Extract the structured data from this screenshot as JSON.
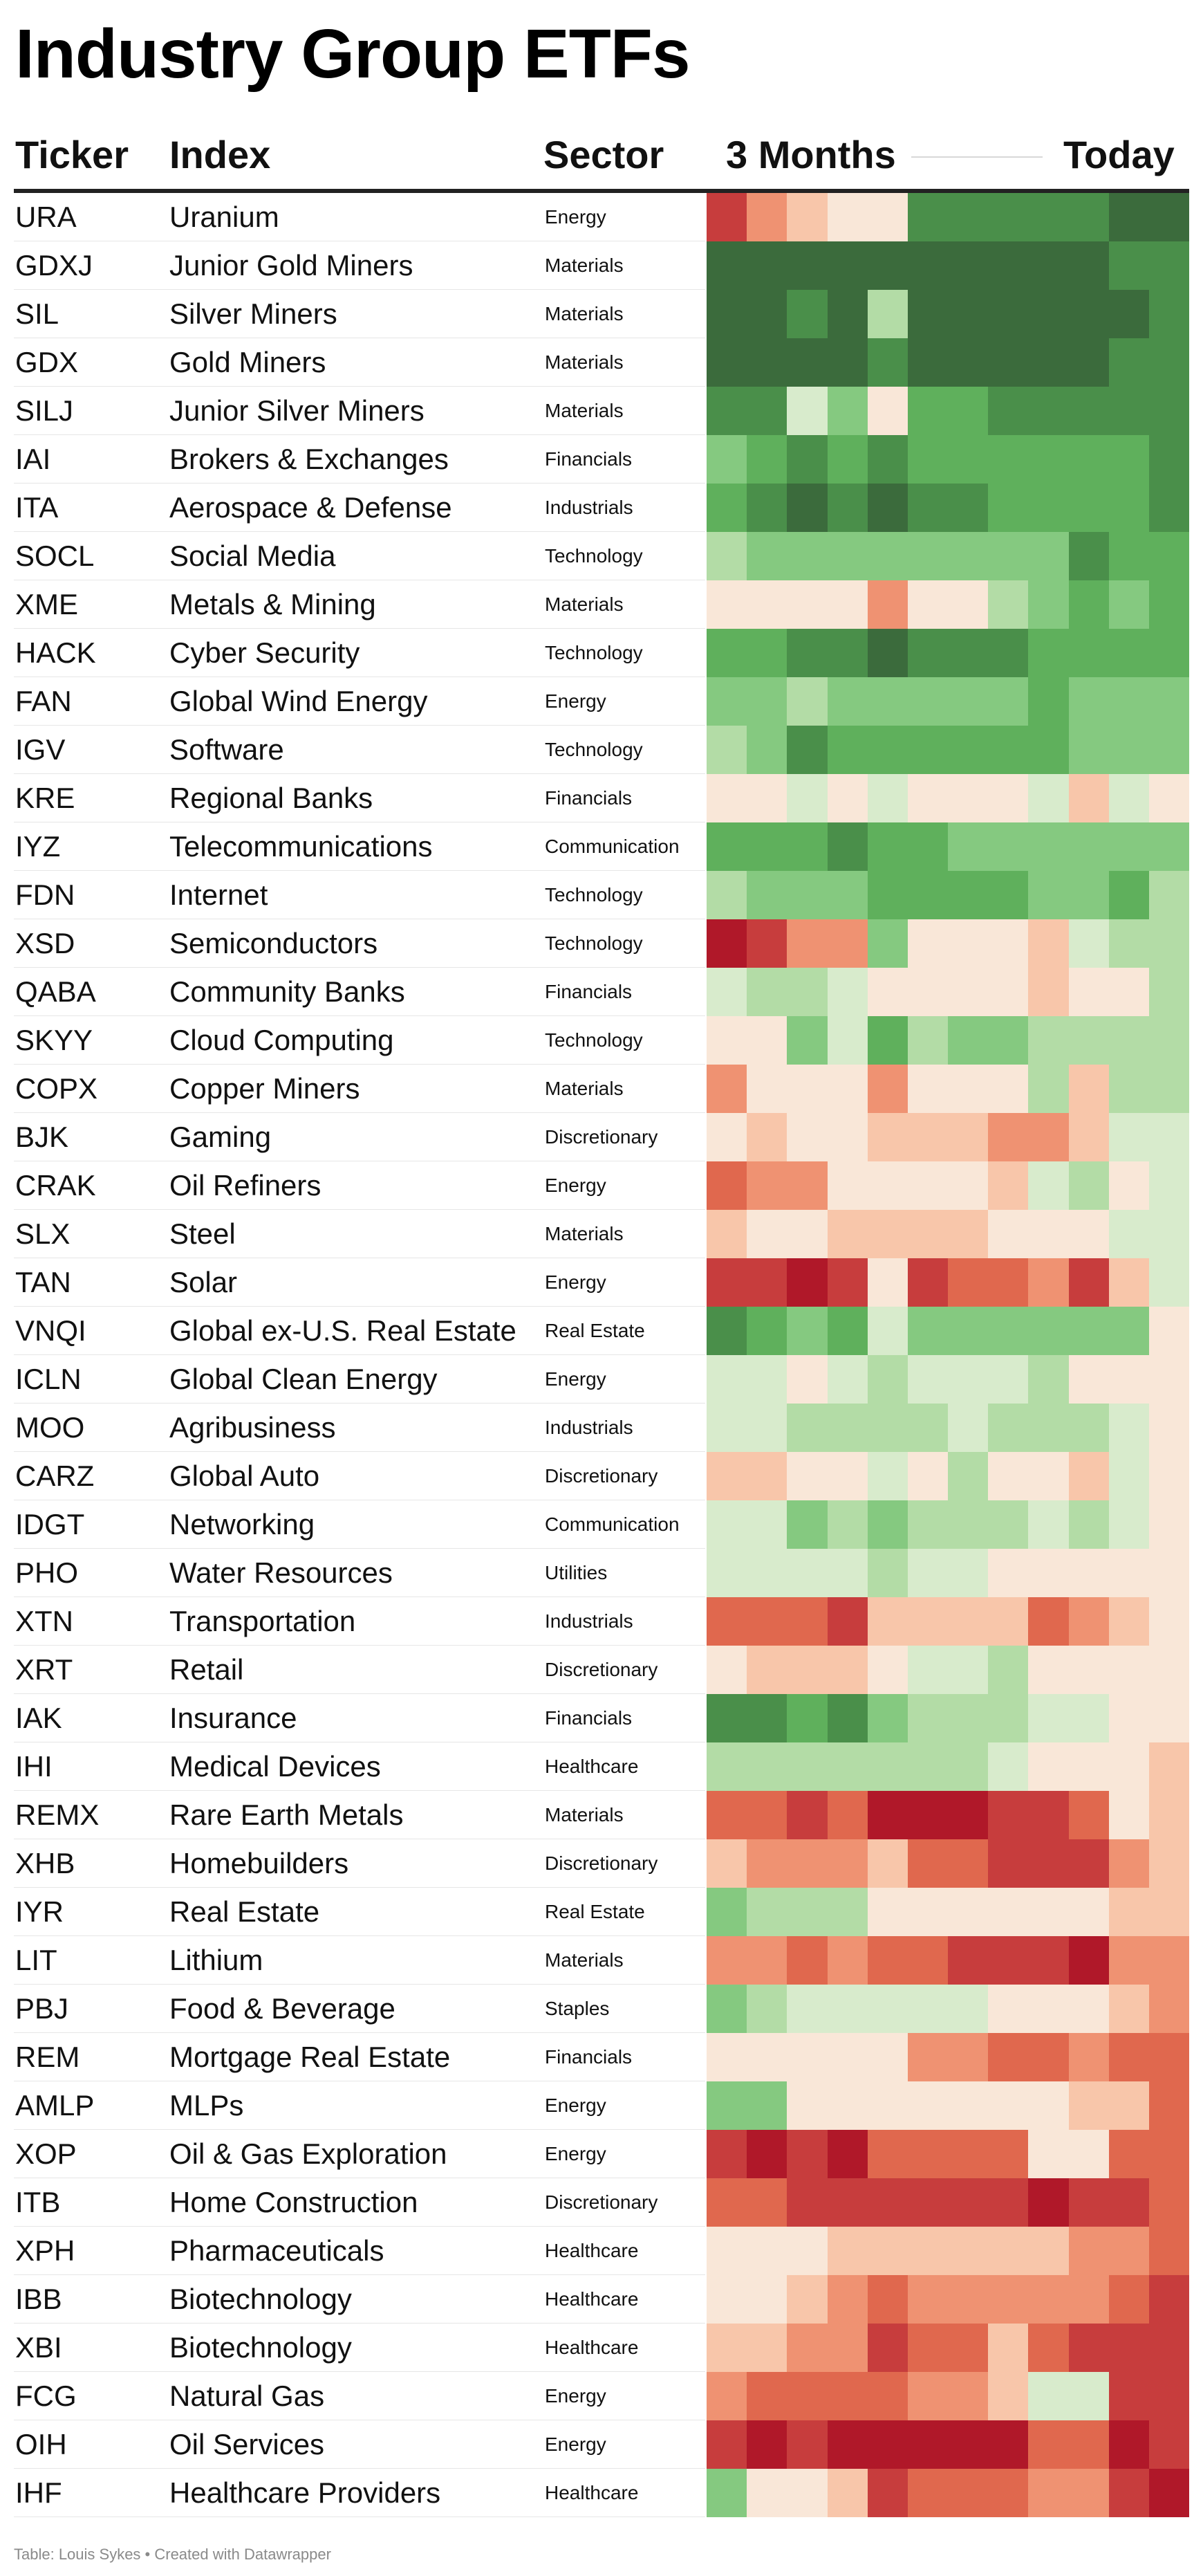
{
  "title": "Industry Group ETFs",
  "headers": {
    "ticker": "Ticker",
    "index": "Index",
    "sector": "Sector",
    "period_start": "3 Months",
    "period_end": "Today"
  },
  "footer": "Table: Louis Sykes • Created with Datawrapper",
  "colors": {
    "-5": "#b01829",
    "-4": "#c73d3d",
    "-3": "#e0684e",
    "-2": "#ef9272",
    "-1": "#f8c6aa",
    "0": "#f9e7d8",
    "1": "#d8ebcc",
    "2": "#b3dca6",
    "3": "#85c980",
    "4": "#5fb05c",
    "5": "#4a8f4a",
    "6": "#3b6b3c"
  },
  "chart_data": {
    "type": "heatmap",
    "title": "Industry Group ETFs",
    "columns": [
      "Ticker",
      "Index",
      "Sector"
    ],
    "time_axis": {
      "start_label": "3 Months",
      "end_label": "Today"
    },
    "scale": "relative strength, -5 (strong red) to 6 (dark green)",
    "rows": [
      {
        "ticker": "URA",
        "index": "Uranium",
        "sector": "Energy",
        "values": [
          -4,
          -2,
          -1,
          0,
          0,
          5,
          5,
          5,
          5,
          5,
          6,
          6
        ]
      },
      {
        "ticker": "GDXJ",
        "index": "Junior Gold Miners",
        "sector": "Materials",
        "values": [
          6,
          6,
          6,
          6,
          6,
          6,
          6,
          6,
          6,
          6,
          5,
          5
        ]
      },
      {
        "ticker": "SIL",
        "index": "Silver Miners",
        "sector": "Materials",
        "values": [
          6,
          6,
          5,
          6,
          2,
          6,
          6,
          6,
          6,
          6,
          6,
          5
        ]
      },
      {
        "ticker": "GDX",
        "index": "Gold Miners",
        "sector": "Materials",
        "values": [
          6,
          6,
          6,
          6,
          5,
          6,
          6,
          6,
          6,
          6,
          5,
          5
        ]
      },
      {
        "ticker": "SILJ",
        "index": "Junior Silver Miners",
        "sector": "Materials",
        "values": [
          5,
          5,
          1,
          3,
          0,
          4,
          4,
          5,
          5,
          5,
          5,
          5
        ]
      },
      {
        "ticker": "IAI",
        "index": "Brokers & Exchanges",
        "sector": "Financials",
        "values": [
          3,
          4,
          5,
          4,
          5,
          4,
          4,
          4,
          4,
          4,
          4,
          5
        ]
      },
      {
        "ticker": "ITA",
        "index": "Aerospace & Defense",
        "sector": "Industrials",
        "values": [
          4,
          5,
          6,
          5,
          6,
          5,
          5,
          4,
          4,
          4,
          4,
          5
        ]
      },
      {
        "ticker": "SOCL",
        "index": "Social Media",
        "sector": "Technology",
        "values": [
          2,
          3,
          3,
          3,
          3,
          3,
          3,
          3,
          3,
          5,
          4,
          4
        ]
      },
      {
        "ticker": "XME",
        "index": "Metals & Mining",
        "sector": "Materials",
        "values": [
          0,
          0,
          0,
          0,
          -2,
          0,
          0,
          2,
          3,
          4,
          3,
          4
        ]
      },
      {
        "ticker": "HACK",
        "index": "Cyber Security",
        "sector": "Technology",
        "values": [
          4,
          4,
          5,
          5,
          6,
          5,
          5,
          5,
          4,
          4,
          4,
          4
        ]
      },
      {
        "ticker": "FAN",
        "index": "Global Wind Energy",
        "sector": "Energy",
        "values": [
          3,
          3,
          2,
          3,
          3,
          3,
          3,
          3,
          4,
          3,
          3,
          3
        ]
      },
      {
        "ticker": "IGV",
        "index": "Software",
        "sector": "Technology",
        "values": [
          2,
          3,
          5,
          4,
          4,
          4,
          4,
          4,
          4,
          3,
          3,
          3
        ]
      },
      {
        "ticker": "KRE",
        "index": "Regional Banks",
        "sector": "Financials",
        "values": [
          0,
          0,
          1,
          0,
          1,
          0,
          0,
          0,
          1,
          -1,
          1,
          0
        ]
      },
      {
        "ticker": "IYZ",
        "index": "Telecommunications",
        "sector": "Communication",
        "values": [
          4,
          4,
          4,
          5,
          4,
          4,
          3,
          3,
          3,
          3,
          3,
          3
        ]
      },
      {
        "ticker": "FDN",
        "index": "Internet",
        "sector": "Technology",
        "values": [
          2,
          3,
          3,
          3,
          4,
          4,
          4,
          4,
          3,
          3,
          4,
          2
        ]
      },
      {
        "ticker": "XSD",
        "index": "Semiconductors",
        "sector": "Technology",
        "values": [
          -5,
          -4,
          -2,
          -2,
          3,
          0,
          0,
          0,
          -1,
          1,
          2,
          2
        ]
      },
      {
        "ticker": "QABA",
        "index": "Community Banks",
        "sector": "Financials",
        "values": [
          1,
          2,
          2,
          1,
          0,
          0,
          0,
          0,
          -1,
          0,
          0,
          2
        ]
      },
      {
        "ticker": "SKYY",
        "index": "Cloud Computing",
        "sector": "Technology",
        "values": [
          0,
          0,
          3,
          1,
          4,
          2,
          3,
          3,
          2,
          2,
          2,
          2
        ]
      },
      {
        "ticker": "COPX",
        "index": "Copper Miners",
        "sector": "Materials",
        "values": [
          -2,
          0,
          0,
          0,
          -2,
          0,
          0,
          0,
          2,
          -1,
          2,
          2
        ]
      },
      {
        "ticker": "BJK",
        "index": "Gaming",
        "sector": "Discretionary",
        "values": [
          0,
          -1,
          0,
          0,
          -1,
          -1,
          -1,
          -2,
          -2,
          -1,
          1,
          1
        ]
      },
      {
        "ticker": "CRAK",
        "index": "Oil Refiners",
        "sector": "Energy",
        "values": [
          -3,
          -2,
          -2,
          0,
          0,
          0,
          0,
          -1,
          1,
          2,
          0,
          1
        ]
      },
      {
        "ticker": "SLX",
        "index": "Steel",
        "sector": "Materials",
        "values": [
          -1,
          0,
          0,
          -1,
          -1,
          -1,
          -1,
          0,
          0,
          0,
          1,
          1
        ]
      },
      {
        "ticker": "TAN",
        "index": "Solar",
        "sector": "Energy",
        "values": [
          -4,
          -4,
          -5,
          -4,
          0,
          -4,
          -3,
          -3,
          -2,
          -4,
          -1,
          1
        ]
      },
      {
        "ticker": "VNQI",
        "index": "Global ex-U.S. Real Estate",
        "sector": "Real Estate",
        "values": [
          5,
          4,
          3,
          4,
          1,
          3,
          3,
          3,
          3,
          3,
          3,
          0
        ]
      },
      {
        "ticker": "ICLN",
        "index": "Global Clean Energy",
        "sector": "Energy",
        "values": [
          1,
          1,
          0,
          1,
          2,
          1,
          1,
          1,
          2,
          0,
          0,
          0
        ]
      },
      {
        "ticker": "MOO",
        "index": "Agribusiness",
        "sector": "Industrials",
        "values": [
          1,
          1,
          2,
          2,
          2,
          2,
          1,
          2,
          2,
          2,
          1,
          0
        ]
      },
      {
        "ticker": "CARZ",
        "index": "Global Auto",
        "sector": "Discretionary",
        "values": [
          -1,
          -1,
          0,
          0,
          1,
          0,
          2,
          0,
          0,
          -1,
          1,
          0
        ]
      },
      {
        "ticker": "IDGT",
        "index": "Networking",
        "sector": "Communication",
        "values": [
          1,
          1,
          3,
          2,
          3,
          2,
          2,
          2,
          1,
          2,
          1,
          0
        ]
      },
      {
        "ticker": "PHO",
        "index": "Water Resources",
        "sector": "Utilities",
        "values": [
          1,
          1,
          1,
          1,
          2,
          1,
          1,
          0,
          0,
          0,
          0,
          0
        ]
      },
      {
        "ticker": "XTN",
        "index": "Transportation",
        "sector": "Industrials",
        "values": [
          -3,
          -3,
          -3,
          -4,
          -1,
          -1,
          -1,
          -1,
          -3,
          -2,
          -1,
          0
        ]
      },
      {
        "ticker": "XRT",
        "index": "Retail",
        "sector": "Discretionary",
        "values": [
          0,
          -1,
          -1,
          -1,
          0,
          1,
          1,
          2,
          0,
          0,
          0,
          0
        ]
      },
      {
        "ticker": "IAK",
        "index": "Insurance",
        "sector": "Financials",
        "values": [
          5,
          5,
          4,
          5,
          3,
          2,
          2,
          2,
          1,
          1,
          0,
          0
        ]
      },
      {
        "ticker": "IHI",
        "index": "Medical Devices",
        "sector": "Healthcare",
        "values": [
          2,
          2,
          2,
          2,
          2,
          2,
          2,
          1,
          0,
          0,
          0,
          -1
        ]
      },
      {
        "ticker": "REMX",
        "index": "Rare Earth Metals",
        "sector": "Materials",
        "values": [
          -3,
          -3,
          -4,
          -3,
          -5,
          -5,
          -5,
          -4,
          -4,
          -3,
          0,
          -1
        ]
      },
      {
        "ticker": "XHB",
        "index": "Homebuilders",
        "sector": "Discretionary",
        "values": [
          -1,
          -2,
          -2,
          -2,
          -1,
          -3,
          -3,
          -4,
          -4,
          -4,
          -2,
          -1
        ]
      },
      {
        "ticker": "IYR",
        "index": "Real Estate",
        "sector": "Real Estate",
        "values": [
          3,
          2,
          2,
          2,
          0,
          0,
          0,
          0,
          0,
          0,
          -1,
          -1
        ]
      },
      {
        "ticker": "LIT",
        "index": "Lithium",
        "sector": "Materials",
        "values": [
          -2,
          -2,
          -3,
          -2,
          -3,
          -3,
          -4,
          -4,
          -4,
          -5,
          -2,
          -2
        ]
      },
      {
        "ticker": "PBJ",
        "index": "Food & Beverage",
        "sector": "Staples",
        "values": [
          3,
          2,
          1,
          1,
          1,
          1,
          1,
          0,
          0,
          0,
          -1,
          -2
        ]
      },
      {
        "ticker": "REM",
        "index": "Mortgage Real Estate",
        "sector": "Financials",
        "values": [
          0,
          0,
          0,
          0,
          0,
          -2,
          -2,
          -3,
          -3,
          -2,
          -3,
          -3
        ]
      },
      {
        "ticker": "AMLP",
        "index": "MLPs",
        "sector": "Energy",
        "values": [
          3,
          3,
          0,
          0,
          0,
          0,
          0,
          0,
          0,
          -1,
          -1,
          -3
        ]
      },
      {
        "ticker": "XOP",
        "index": "Oil & Gas Exploration",
        "sector": "Energy",
        "values": [
          -4,
          -5,
          -4,
          -5,
          -3,
          -3,
          -3,
          -3,
          0,
          0,
          -3,
          -3
        ]
      },
      {
        "ticker": "ITB",
        "index": "Home Construction",
        "sector": "Discretionary",
        "values": [
          -3,
          -3,
          -4,
          -4,
          -4,
          -4,
          -4,
          -4,
          -5,
          -4,
          -4,
          -3
        ]
      },
      {
        "ticker": "XPH",
        "index": "Pharmaceuticals",
        "sector": "Healthcare",
        "values": [
          0,
          0,
          0,
          -1,
          -1,
          -1,
          -1,
          -1,
          -1,
          -2,
          -2,
          -3
        ]
      },
      {
        "ticker": "IBB",
        "index": "Biotechnology",
        "sector": "Healthcare",
        "values": [
          0,
          0,
          -1,
          -2,
          -3,
          -2,
          -2,
          -2,
          -2,
          -2,
          -3,
          -4
        ]
      },
      {
        "ticker": "XBI",
        "index": "Biotechnology",
        "sector": "Healthcare",
        "values": [
          -1,
          -1,
          -2,
          -2,
          -4,
          -3,
          -3,
          -1,
          -3,
          -4,
          -4,
          -4
        ]
      },
      {
        "ticker": "FCG",
        "index": "Natural Gas",
        "sector": "Energy",
        "values": [
          -2,
          -3,
          -3,
          -3,
          -3,
          -2,
          -2,
          -1,
          1,
          1,
          -4,
          -4
        ]
      },
      {
        "ticker": "OIH",
        "index": "Oil Services",
        "sector": "Energy",
        "values": [
          -4,
          -5,
          -4,
          -5,
          -5,
          -5,
          -5,
          -5,
          -3,
          -3,
          -5,
          -4
        ]
      },
      {
        "ticker": "IHF",
        "index": "Healthcare Providers",
        "sector": "Healthcare",
        "values": [
          3,
          0,
          0,
          -1,
          -4,
          -3,
          -3,
          -3,
          -2,
          -2,
          -4,
          -5
        ]
      }
    ]
  }
}
